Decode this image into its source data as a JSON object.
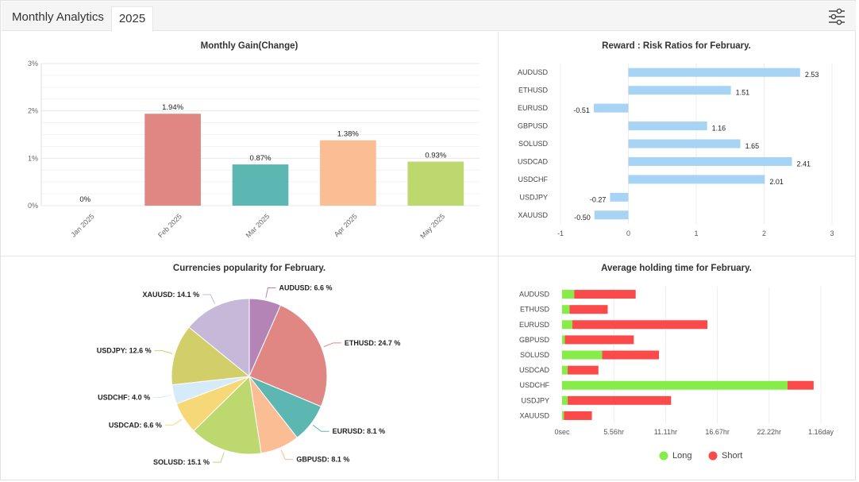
{
  "header": {
    "title": "Monthly Analytics",
    "tab_label": "2025"
  },
  "icons": {
    "settings": "sliders-icon"
  },
  "colors": {
    "long": "#86ec4a",
    "short": "#fb4a4a",
    "rr_bar": "#a7d3f5"
  },
  "chart_data": [
    {
      "type": "bar",
      "title": "Monthly Gain(Change)",
      "categories": [
        "Jan 2025",
        "Feb 2025",
        "Mar 2025",
        "Apr 2025",
        "May 2025"
      ],
      "values": [
        0,
        1.94,
        0.87,
        1.38,
        0.93
      ],
      "value_labels": [
        "0%",
        "1.94%",
        "0.87%",
        "1.38%",
        "0.93%"
      ],
      "colors": [
        "#e0e0e0",
        "#e08784",
        "#5cb7b3",
        "#fbbd93",
        "#bdd86e"
      ],
      "ylim": [
        0,
        3
      ],
      "yticks": [
        "0%",
        "1%",
        "2%",
        "3%"
      ],
      "grid": true
    },
    {
      "type": "bar",
      "orientation": "horizontal",
      "title": "Reward : Risk Ratios for February.",
      "categories": [
        "AUDUSD",
        "ETHUSD",
        "EURUSD",
        "GBPUSD",
        "SOLUSD",
        "USDCAD",
        "USDCHF",
        "USDJPY",
        "XAUUSD"
      ],
      "values": [
        2.53,
        1.51,
        -0.51,
        1.16,
        1.65,
        2.41,
        2.01,
        -0.27,
        -0.5
      ],
      "value_labels": [
        "2.53",
        "1.51",
        "-0.51",
        "1.16",
        "1.65",
        "2.41",
        "2.01",
        "-0.27",
        "-0.50"
      ],
      "xlim": [
        -1,
        3
      ],
      "xticks": [
        "-1",
        "0",
        "1",
        "2",
        "3"
      ],
      "grid": true
    },
    {
      "type": "pie",
      "title": "Currencies popularity for February.",
      "slices": [
        {
          "label": "AUDUSD: 6.6 %",
          "value": 6.6,
          "color": "#b384b5"
        },
        {
          "label": "ETHUSD: 24.7 %",
          "value": 24.7,
          "color": "#e08784"
        },
        {
          "label": "EURUSD: 8.1 %",
          "value": 8.1,
          "color": "#5cb7b3"
        },
        {
          "label": "GBPUSD: 8.1 %",
          "value": 8.1,
          "color": "#fbbd93"
        },
        {
          "label": "SOLUSD: 15.1 %",
          "value": 15.1,
          "color": "#bdd86e"
        },
        {
          "label": "USDCAD: 6.6 %",
          "value": 6.6,
          "color": "#f7d879"
        },
        {
          "label": "USDCHF: 4.0 %",
          "value": 4.0,
          "color": "#d6ebf9"
        },
        {
          "label": "USDJPY: 12.6 %",
          "value": 12.6,
          "color": "#d2cf6b"
        },
        {
          "label": "XAUUSD: 14.1 %",
          "value": 14.1,
          "color": "#c6b8d9"
        }
      ]
    },
    {
      "type": "bar",
      "orientation": "horizontal",
      "stacked": true,
      "title": "Average holding time for February.",
      "categories": [
        "AUDUSD",
        "ETHUSD",
        "EURUSD",
        "GBPUSD",
        "SOLUSD",
        "USDCAD",
        "USDCHF",
        "USDJPY",
        "XAUUSD"
      ],
      "xticks": [
        "0sec",
        "5.56hr",
        "11.11hr",
        "16.67hr",
        "22.22hr",
        "1.16day"
      ],
      "unit": "hours",
      "xlim": [
        0,
        27.78
      ],
      "series": [
        {
          "name": "Long",
          "color": "#86ec4a",
          "values": [
            1.3,
            0.8,
            1.1,
            0.3,
            4.3,
            0.6,
            24.2,
            0.6,
            0.2
          ]
        },
        {
          "name": "Short",
          "color": "#fb4a4a",
          "values": [
            6.6,
            4.1,
            14.5,
            7.4,
            6.1,
            3.3,
            2.8,
            11.1,
            3.0
          ]
        }
      ],
      "legend": "bottom",
      "grid": true
    }
  ]
}
